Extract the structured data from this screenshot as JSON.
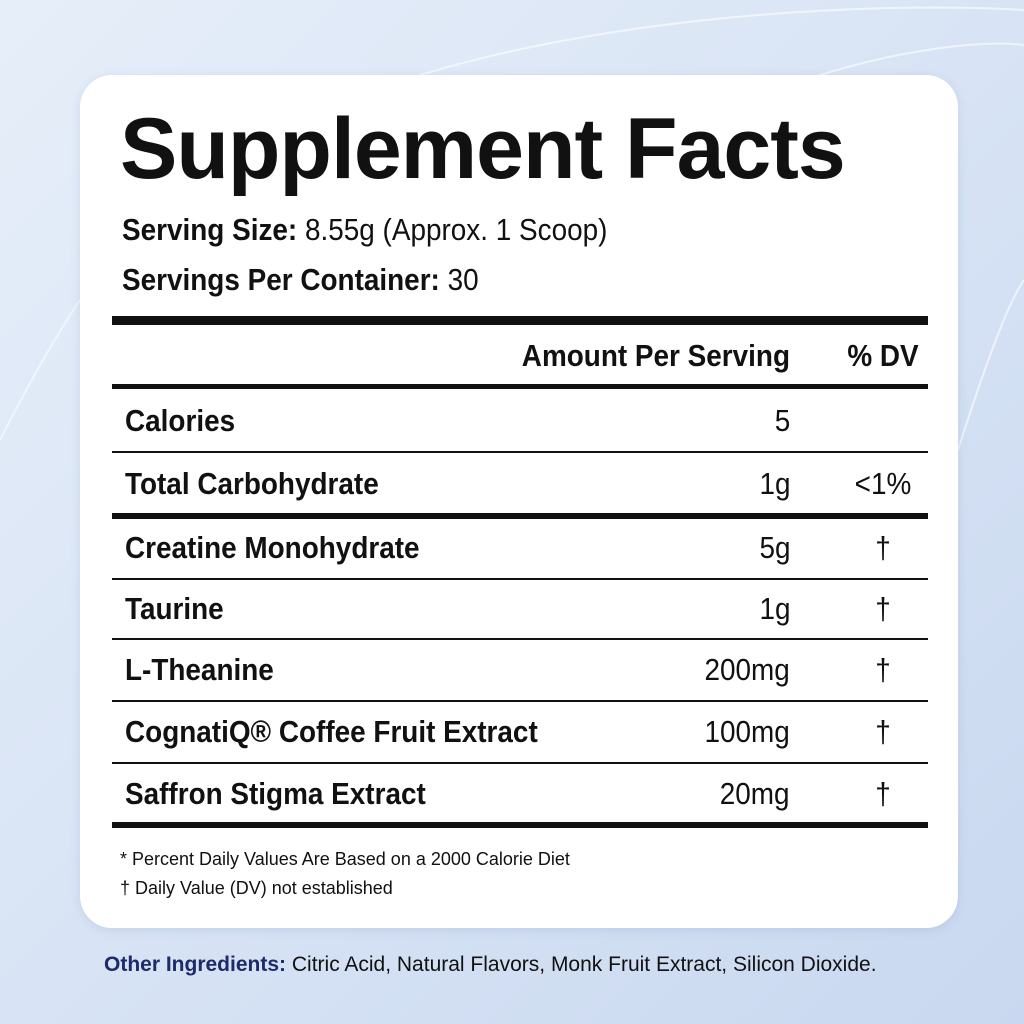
{
  "title": "Supplement Facts",
  "serving_size": {
    "label": "Serving Size:",
    "value": "8.55g (Approx. 1 Scoop)"
  },
  "servings_per_container": {
    "label": "Servings Per Container:",
    "value": "30"
  },
  "table": {
    "header": [
      "Amount Per Serving",
      "% DV"
    ],
    "rows": [
      {
        "name": "Calories",
        "amount": "5"
      },
      {
        "name": "Total Carbohydrate",
        "amount": "1g",
        "dv": "<1%"
      },
      {
        "name": "Creatine Monohydrate",
        "amount": "5g",
        "dv": "†"
      },
      {
        "name": "Taurine",
        "amount": "1g",
        "dv": "†"
      },
      {
        "name": "L-Theanine",
        "amount": "200mg",
        "dv": "†"
      },
      {
        "name": "CognatiQ® Coffee Fruit Extract",
        "amount": "100mg",
        "dv": "†"
      },
      {
        "name": "Saffron Stigma Extract",
        "amount": "20mg",
        "dv": "†"
      }
    ]
  },
  "footnotes": [
    "* Percent Daily Values Are Based on a 2000 Calorie Diet",
    "† Daily Value (DV) not established"
  ],
  "other_ingredients": {
    "label": "Other Ingredients:",
    "text": "Citric Acid, Natural Flavors, Monk Fruit Extract, Silicon Dioxide."
  }
}
